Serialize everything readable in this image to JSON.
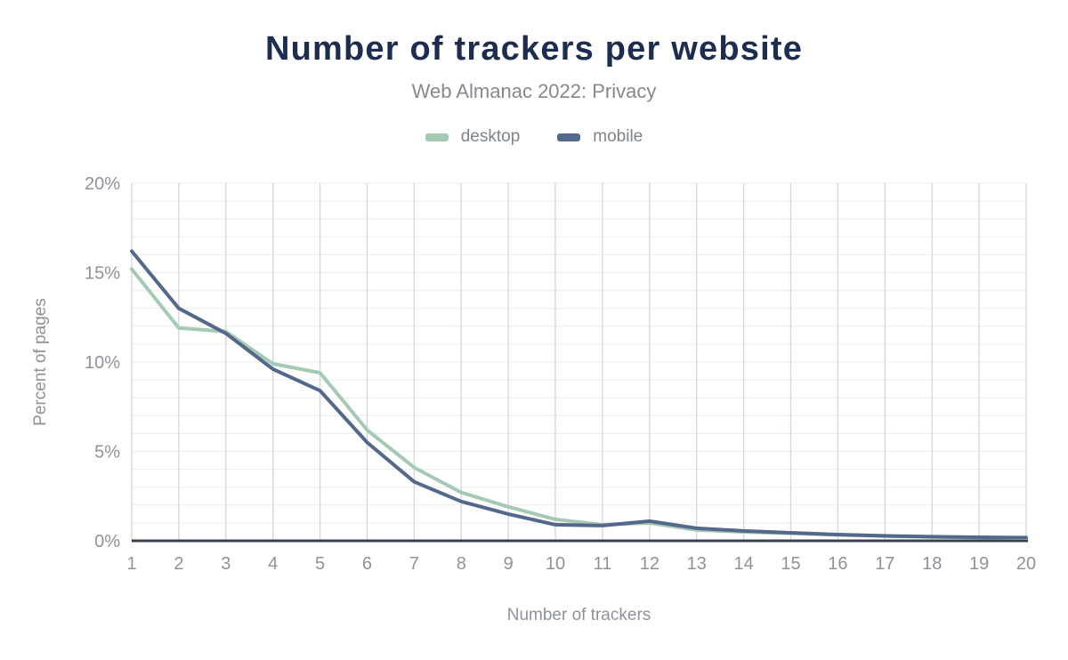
{
  "title": "Number of trackers per website",
  "subtitle": "Web Almanac 2022: Privacy",
  "legend": {
    "items": [
      {
        "label": "desktop",
        "color": "#a4cab4"
      },
      {
        "label": "mobile",
        "color": "#54688c"
      }
    ]
  },
  "axes": {
    "y_label": "Percent of pages",
    "x_label": "Number of trackers",
    "y_ticks": [
      {
        "value": 0,
        "label": "0%"
      },
      {
        "value": 5,
        "label": "5%"
      },
      {
        "value": 10,
        "label": "10%"
      },
      {
        "value": 15,
        "label": "15%"
      },
      {
        "value": 20,
        "label": "20%"
      }
    ],
    "x_ticks": [
      "1",
      "2",
      "3",
      "4",
      "5",
      "6",
      "7",
      "8",
      "9",
      "10",
      "11",
      "12",
      "13",
      "14",
      "15",
      "16",
      "17",
      "18",
      "19",
      "20"
    ]
  },
  "colors": {
    "title": "#1d2d4f",
    "text_muted": "#8e9398",
    "axis_line": "#37404a",
    "gridline_vertical": "#d6d6d6",
    "gridline_horizontal": "#ececec"
  },
  "chart_data": {
    "type": "line",
    "title": "Number of trackers per website",
    "subtitle": "Web Almanac 2022: Privacy",
    "xlabel": "Number of trackers",
    "ylabel": "Percent of pages",
    "x": [
      1,
      2,
      3,
      4,
      5,
      6,
      7,
      8,
      9,
      10,
      11,
      12,
      13,
      14,
      15,
      16,
      17,
      18,
      19,
      20
    ],
    "xlim": [
      1,
      20
    ],
    "ylim": [
      0,
      20
    ],
    "y_unit": "%",
    "grid": true,
    "legend_position": "top",
    "series": [
      {
        "name": "desktop",
        "color": "#a4cab4",
        "values": [
          15.2,
          11.9,
          11.7,
          9.9,
          9.4,
          6.2,
          4.1,
          2.7,
          1.9,
          1.2,
          0.9,
          1.0,
          0.6,
          0.5,
          0.42,
          0.33,
          0.26,
          0.21,
          0.18,
          0.15
        ]
      },
      {
        "name": "mobile",
        "color": "#54688c",
        "values": [
          16.2,
          13.0,
          11.6,
          9.6,
          8.4,
          5.5,
          3.3,
          2.2,
          1.5,
          0.9,
          0.85,
          1.1,
          0.7,
          0.55,
          0.45,
          0.35,
          0.28,
          0.23,
          0.2,
          0.18
        ]
      }
    ]
  }
}
